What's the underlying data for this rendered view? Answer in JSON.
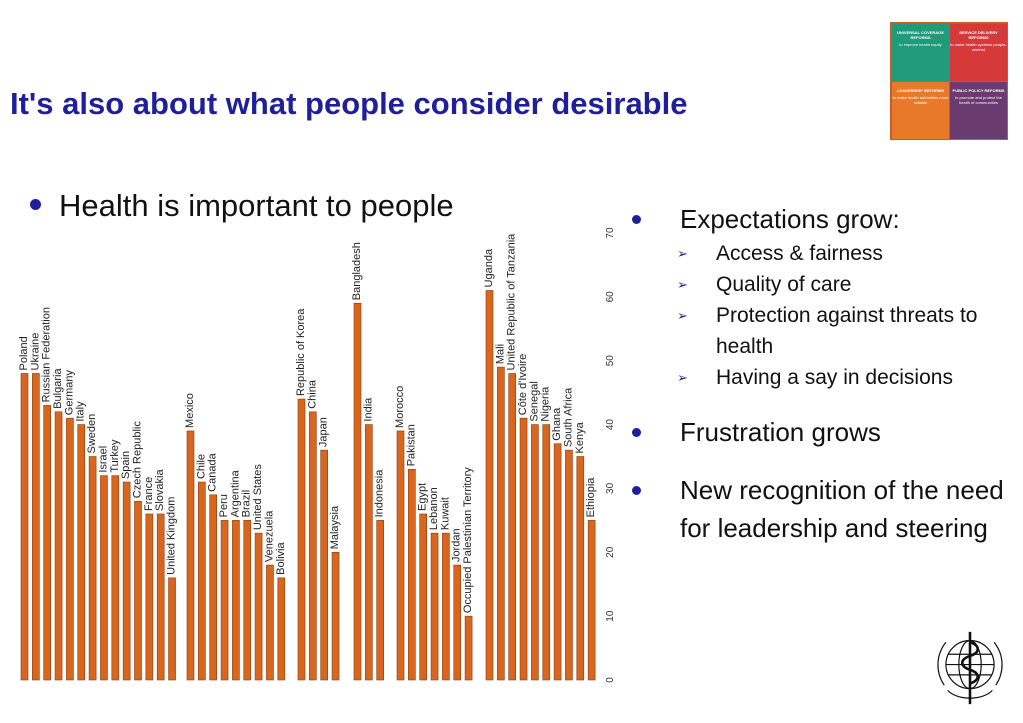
{
  "slide": {
    "title": "It's also about what people consider desirable",
    "lead_bullet": "Health is important to people"
  },
  "right_panel": {
    "bullets": [
      {
        "text": "Expectations grow:",
        "sub": [
          "Access & fairness",
          "Quality of care",
          "Protection against threats to health",
          "Having a say in decisions"
        ]
      },
      {
        "text": "Frustration grows",
        "sub": []
      },
      {
        "text": "New recognition of the need for leadership and steering",
        "sub": []
      }
    ]
  },
  "puzzle": {
    "pieces": [
      {
        "title": "UNIVERSAL COVERAGE REFORMS",
        "text": "to improve health equity",
        "color": "#1f9a7a"
      },
      {
        "title": "SERVICE DELIVERY REFORMS",
        "text": "to make health systems people-centred",
        "color": "#d6393a"
      },
      {
        "title": "LEADERSHIP REFORMS",
        "text": "to make health authorities more reliable",
        "color": "#e8782a"
      },
      {
        "title": "PUBLIC POLICY REFORMS",
        "text": "to promote and protect the health of communities",
        "color": "#6a3b6e"
      }
    ]
  },
  "colors": {
    "title": "#1f1f9c",
    "bar": "#d8661e",
    "bar_edge": "#8a3d0a",
    "bullet": "#1f1f9c"
  },
  "logo": {
    "name": "who-emblem-icon"
  },
  "chart_data": {
    "type": "bar",
    "orientation": "vertical",
    "y_axis_position": "right",
    "ylim": [
      0,
      70
    ],
    "yticks": [
      0,
      10,
      20,
      30,
      40,
      50,
      60,
      70
    ],
    "groups": [
      {
        "categories": [
          "Poland",
          "Ukraine",
          "Russian Federation",
          "Bulgaria",
          "Germany",
          "Italy",
          "Sweden",
          "Israel",
          "Turkey",
          "Spain",
          "Czech Republic",
          "France",
          "Slovakia",
          "United Kingdom"
        ],
        "values": [
          48,
          48,
          43,
          42,
          41,
          40,
          35,
          32,
          32,
          31,
          28,
          26,
          26,
          16
        ]
      },
      {
        "categories": [
          "Mexico",
          "Chile",
          "Canada",
          "Peru",
          "Argentina",
          "Brazil",
          "United States",
          "Venezuela",
          "Bolivia"
        ],
        "values": [
          39,
          31,
          29,
          25,
          25,
          25,
          23,
          18,
          16
        ]
      },
      {
        "categories": [
          "Republic of Korea",
          "China",
          "Japan",
          "Malaysia"
        ],
        "values": [
          44,
          42,
          36,
          20
        ]
      },
      {
        "categories": [
          "Bangladesh",
          "India",
          "Indonesia"
        ],
        "values": [
          59,
          40,
          25
        ]
      },
      {
        "categories": [
          "Morocco",
          "Pakistan",
          "Egypt",
          "Lebanon",
          "Kuwait",
          "Jordan",
          "Occupied Palestinian Territory"
        ],
        "values": [
          39,
          33,
          26,
          23,
          23,
          18,
          10
        ]
      },
      {
        "categories": [
          "Uganda",
          "Mali",
          "United Republic of Tanzania",
          "Côte d'Ivoire",
          "Senegal",
          "Nigeria",
          "Ghana",
          "South Africa",
          "Kenya",
          "Ethiopia"
        ],
        "values": [
          61,
          49,
          48,
          41,
          40,
          40,
          37,
          36,
          35,
          25
        ]
      }
    ]
  }
}
